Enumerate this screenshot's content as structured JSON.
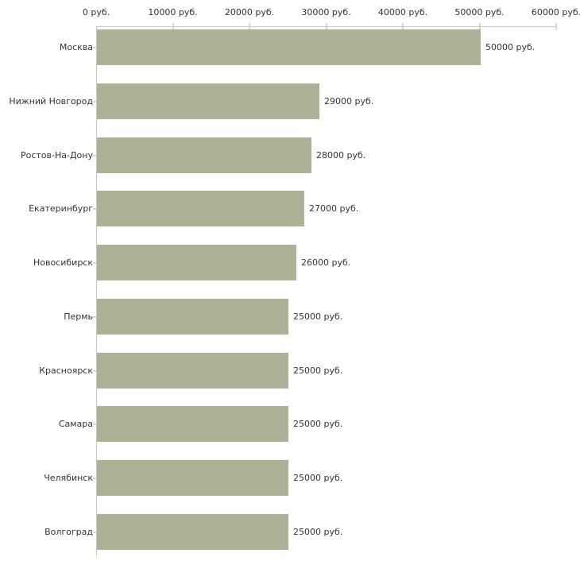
{
  "chart_data": {
    "type": "bar",
    "orientation": "horizontal",
    "title": "",
    "xlabel": "",
    "ylabel": "",
    "unit": "руб.",
    "categories": [
      "Москва",
      "Нижний Новгород",
      "Ростов-На-Дону",
      "Екатеринбург",
      "Новосибирск",
      "Пермь",
      "Красноярск",
      "Самара",
      "Челябинск",
      "Волгоград"
    ],
    "values": [
      50000,
      29000,
      28000,
      27000,
      26000,
      25000,
      25000,
      25000,
      25000,
      25000
    ],
    "value_labels": [
      "50000 руб.",
      "29000 руб.",
      "28000 руб.",
      "27000 руб.",
      "26000 руб.",
      "25000 руб.",
      "25000 руб.",
      "25000 руб.",
      "25000 руб.",
      "25000 руб."
    ],
    "x_tick_values": [
      0,
      10000,
      20000,
      30000,
      40000,
      50000,
      60000
    ],
    "x_tick_labels": [
      "0 руб.",
      "10000 руб.",
      "20000 руб.",
      "30000 руб.",
      "40000 руб.",
      "50000 руб.",
      "60000 руб."
    ],
    "xlim": [
      0,
      60000
    ],
    "grid": false,
    "legend": false,
    "axis_position": "top-left",
    "colors": {
      "bar": "#acb296",
      "axis": "#c5c5c5",
      "tick": "#d8dabf",
      "text": "#333333",
      "background": "#ffffff"
    }
  }
}
